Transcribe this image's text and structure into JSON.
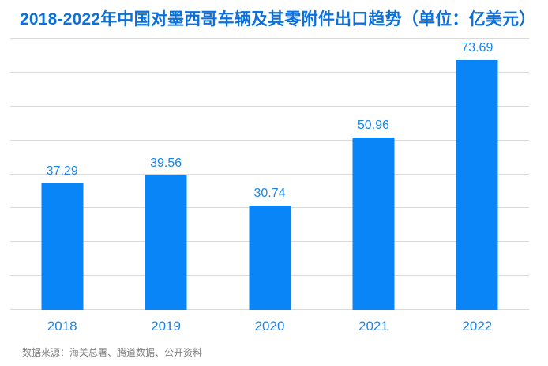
{
  "header": {
    "title": "2018-2022年中国对墨西哥车辆及其零附件出口趋势（单位：亿美元）"
  },
  "footer": {
    "source": "数据来源：海关总署、腾道数据、公开资料"
  },
  "colors": {
    "bar": "#0a85f8",
    "title": "#0c70dc",
    "value_label": "#1b85e8",
    "tick_label": "#1b85e8",
    "gridline": "#d9d9d9",
    "source_text": "#7f7f7f",
    "background": "#ffffff"
  },
  "chart_data": {
    "type": "bar",
    "title": "2018-2022年中国对墨西哥车辆及其零附件出口趋势（单位：亿美元）",
    "categories": [
      "2018",
      "2019",
      "2020",
      "2021",
      "2022"
    ],
    "values": [
      37.29,
      39.56,
      30.74,
      50.96,
      73.69
    ],
    "unit": "亿美元",
    "xlabel": "",
    "ylabel": "",
    "ylim": [
      0,
      80
    ],
    "gridline_step": 10,
    "grid": true,
    "legend": false,
    "data_labels": true,
    "value_label_decimals": 2
  }
}
